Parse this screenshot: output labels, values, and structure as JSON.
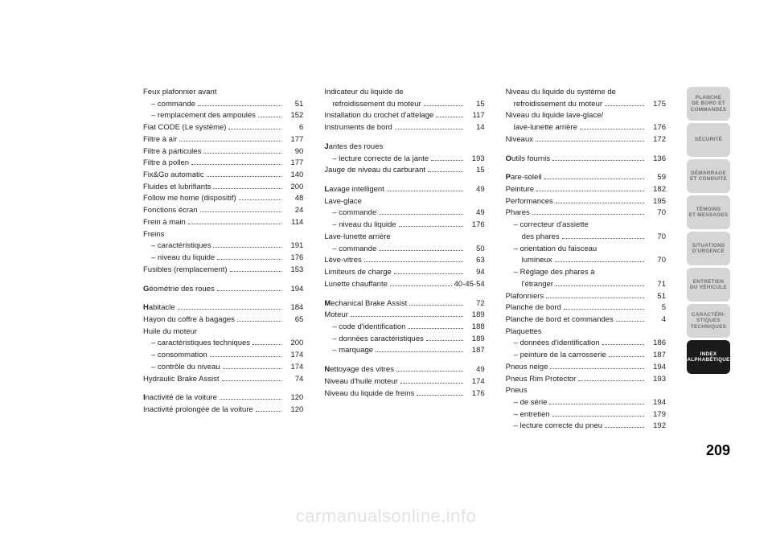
{
  "page_number": "209",
  "watermark": "carmanualsonline.info",
  "tabs": [
    {
      "line1": "PLANCHE",
      "line2": "DE BORD ET",
      "line3": "COMMANDES",
      "active": false
    },
    {
      "line1": "SÉCURITÉ",
      "line2": "",
      "line3": "",
      "active": false
    },
    {
      "line1": "DÉMARRAGE",
      "line2": "ET CONDUITE",
      "line3": "",
      "active": false
    },
    {
      "line1": "TÉMOINS",
      "line2": "ET MESSAGES",
      "line3": "",
      "active": false
    },
    {
      "line1": "SITUATIONS",
      "line2": "D'URGENCE",
      "line3": "",
      "active": false
    },
    {
      "line1": "ENTRETIEN",
      "line2": "DU VÉHICULE",
      "line3": "",
      "active": false
    },
    {
      "line1": "CARACTÉRI-",
      "line2": "STIQUES",
      "line3": "TECHNIQUES",
      "active": false
    },
    {
      "line1": "INDEX",
      "line2": "ALPHABÉTIQUE",
      "line3": "",
      "active": true
    }
  ],
  "col1": [
    {
      "label": "Feux plafonnier avant",
      "page": "",
      "sub": false,
      "header": true
    },
    {
      "label": "– commande",
      "page": "51",
      "sub": true
    },
    {
      "label": "– remplacement des ampoules",
      "page": "152",
      "sub": true
    },
    {
      "label": "Fiat CODE (Le système)",
      "page": "6",
      "sub": false
    },
    {
      "label": "Filtre à air",
      "page": "177",
      "sub": false
    },
    {
      "label": "Filtre à particules",
      "page": "90",
      "sub": false
    },
    {
      "label": "Filtre à pollen",
      "page": "177",
      "sub": false
    },
    {
      "label": "Fix&Go automatic",
      "page": "140",
      "sub": false
    },
    {
      "label": "Fluides et lubrifiants",
      "page": "200",
      "sub": false
    },
    {
      "label": "Follow me home (dispositif)",
      "page": "48",
      "sub": false
    },
    {
      "label": "Fonctions écran",
      "page": "24",
      "sub": false
    },
    {
      "label": "Frein à main",
      "page": "114",
      "sub": false
    },
    {
      "label": "Freins",
      "page": "",
      "sub": false,
      "header": true
    },
    {
      "label": "– caractéristiques",
      "page": "191",
      "sub": true
    },
    {
      "label": "– niveau du liquide",
      "page": "176",
      "sub": true
    },
    {
      "label": "Fusibles (remplacement)",
      "page": "153",
      "sub": false
    },
    {
      "spacer": true
    },
    {
      "label": "Géométrie des roues",
      "page": "194",
      "sub": false,
      "cap": "G"
    },
    {
      "spacer": true
    },
    {
      "label": "Habitacle",
      "page": "184",
      "sub": false,
      "cap": "H"
    },
    {
      "label": "Hayon du coffre à bagages",
      "page": "65",
      "sub": false
    },
    {
      "label": "Huile du moteur",
      "page": "",
      "sub": false,
      "header": true
    },
    {
      "label": "– caractéristiques techniques",
      "page": "200",
      "sub": true
    },
    {
      "label": "– consommation",
      "page": "174",
      "sub": true
    },
    {
      "label": "– contrôle du niveau",
      "page": "174",
      "sub": true
    },
    {
      "label": "Hydraulic Brake Assist",
      "page": "74",
      "sub": false
    },
    {
      "spacer": true
    },
    {
      "label": "Inactivité de la voiture",
      "page": "120",
      "sub": false,
      "cap": "I"
    },
    {
      "label": "Inactivité prolongée de la voiture",
      "page": "120",
      "sub": false
    }
  ],
  "col2": [
    {
      "label": "Indicateur du liquide de",
      "page": "",
      "sub": false,
      "header": true
    },
    {
      "label": "refroidissement du moteur",
      "page": "15",
      "sub": true
    },
    {
      "label": "Installation du crochet d'attelage",
      "page": "117",
      "sub": false
    },
    {
      "label": "Instruments de bord",
      "page": "14",
      "sub": false
    },
    {
      "spacer": true
    },
    {
      "label": "Jantes des roues",
      "page": "",
      "sub": false,
      "cap": "J",
      "header": true
    },
    {
      "label": "– lecture correcte de la jante",
      "page": "193",
      "sub": true
    },
    {
      "label": "Jauge de niveau du carburant",
      "page": "15",
      "sub": false
    },
    {
      "spacer": true
    },
    {
      "label": "Lavage intelligent",
      "page": "49",
      "sub": false,
      "cap": "L"
    },
    {
      "label": "Lave-glace",
      "page": "",
      "sub": false,
      "header": true
    },
    {
      "label": "– commande",
      "page": "49",
      "sub": true
    },
    {
      "label": "– niveau du liquide",
      "page": "176",
      "sub": true
    },
    {
      "label": "Lave-lunette arrière",
      "page": "",
      "sub": false,
      "header": true
    },
    {
      "label": "– commande",
      "page": "50",
      "sub": true
    },
    {
      "label": "Lève-vitres",
      "page": "63",
      "sub": false
    },
    {
      "label": "Limiteurs de charge",
      "page": "94",
      "sub": false
    },
    {
      "label": "Lunette chauffante",
      "page": "40-45-54",
      "sub": false
    },
    {
      "spacer": true
    },
    {
      "label": "Mechanical Brake Assist",
      "page": "72",
      "sub": false,
      "cap": "M"
    },
    {
      "label": "Moteur",
      "page": "189",
      "sub": false
    },
    {
      "label": "– code d'identification",
      "page": "188",
      "sub": true
    },
    {
      "label": "– données caractéristiques",
      "page": "189",
      "sub": true
    },
    {
      "label": "– marquage",
      "page": "187",
      "sub": true
    },
    {
      "spacer": true
    },
    {
      "label": "Nettoyage des vitres",
      "page": "49",
      "sub": false,
      "cap": "N"
    },
    {
      "label": "Niveau d'huile moteur",
      "page": "174",
      "sub": false
    },
    {
      "label": "Niveau du liquide de freins",
      "page": "176",
      "sub": false
    }
  ],
  "col3": [
    {
      "label": "Niveau du liquide du système de",
      "page": "",
      "sub": false,
      "header": true
    },
    {
      "label": "refroidissement du moteur",
      "page": "175",
      "sub": true
    },
    {
      "label": "Niveau du liquide lave-glace/",
      "page": "",
      "sub": false,
      "header": true
    },
    {
      "label": "lave-lunette arrière",
      "page": "176",
      "sub": true
    },
    {
      "label": "Niveaux",
      "page": "172",
      "sub": false
    },
    {
      "spacer": true
    },
    {
      "label": "Outils fournis",
      "page": "136",
      "sub": false,
      "cap": "O"
    },
    {
      "spacer": true
    },
    {
      "label": "Pare-soleil",
      "page": "59",
      "sub": false,
      "cap": "P"
    },
    {
      "label": "Peinture",
      "page": "182",
      "sub": false
    },
    {
      "label": "Performances",
      "page": "195",
      "sub": false
    },
    {
      "label": "Phares",
      "page": "70",
      "sub": false
    },
    {
      "label": "– correcteur d'assiette",
      "page": "",
      "sub": true,
      "header": true
    },
    {
      "label": "des phares",
      "page": "70",
      "sub": true,
      "deep": true
    },
    {
      "label": "– orientation du faisceau",
      "page": "",
      "sub": true,
      "header": true
    },
    {
      "label": "lumineux",
      "page": "70",
      "sub": true,
      "deep": true
    },
    {
      "label": "– Réglage des phares à",
      "page": "",
      "sub": true,
      "header": true
    },
    {
      "label": "l'étranger",
      "page": "71",
      "sub": true,
      "deep": true
    },
    {
      "label": "Plafonniers",
      "page": "51",
      "sub": false
    },
    {
      "label": "Planche de bord",
      "page": "5",
      "sub": false
    },
    {
      "label": "Planche de bord et commandes",
      "page": "4",
      "sub": false
    },
    {
      "label": "Plaquettes",
      "page": "",
      "sub": false,
      "header": true
    },
    {
      "label": "– données d'identification",
      "page": "186",
      "sub": true
    },
    {
      "label": "– peinture de la carrosserie",
      "page": "187",
      "sub": true
    },
    {
      "label": "Pneus neige",
      "page": "194",
      "sub": false
    },
    {
      "label": "Pneus Rim Protector",
      "page": "193",
      "sub": false
    },
    {
      "label": "Pneus",
      "page": "",
      "sub": false,
      "header": true
    },
    {
      "label": "– de série",
      "page": "194",
      "sub": true
    },
    {
      "label": "– entretien",
      "page": "179",
      "sub": true
    },
    {
      "label": "– lecture correcte du pneu",
      "page": "192",
      "sub": true
    }
  ]
}
